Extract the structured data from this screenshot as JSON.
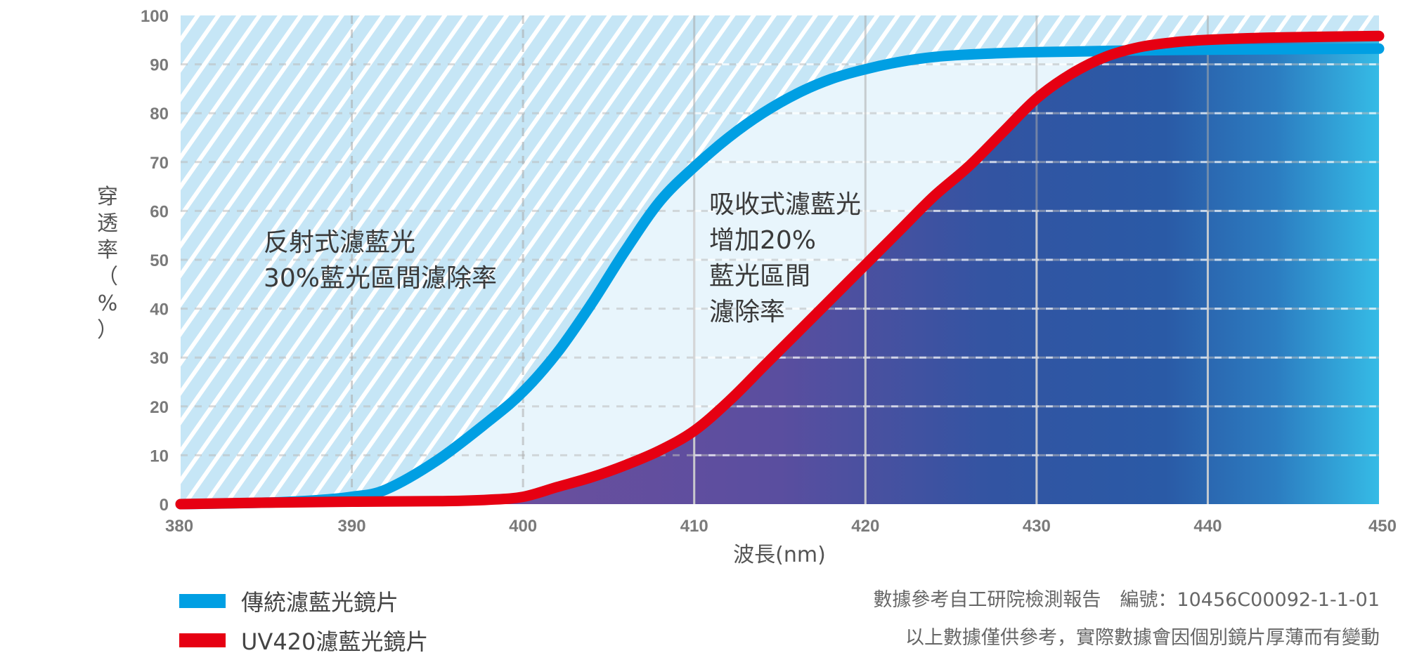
{
  "chart_data": {
    "type": "line",
    "xlabel": "波長(nm)",
    "ylabel": "穿透率（%）",
    "xlim": [
      380,
      450
    ],
    "ylim": [
      0,
      100
    ],
    "xticks": [
      "380",
      "390",
      "400",
      "410",
      "420",
      "430",
      "440",
      "450"
    ],
    "yticks": [
      "0",
      "10",
      "20",
      "30",
      "40",
      "50",
      "60",
      "70",
      "80",
      "90",
      "100"
    ],
    "grid": true,
    "series": [
      {
        "name": "傳統濾藍光鏡片",
        "color": "#009fe3",
        "x": [
          380,
          385,
          388,
          390,
          392,
          395,
          398,
          400,
          402,
          404,
          406,
          408,
          410,
          412,
          414,
          416,
          418,
          420,
          422,
          424,
          426,
          428,
          430,
          432,
          435,
          440,
          445,
          450
        ],
        "y": [
          0,
          0.3,
          0.8,
          1.5,
          3,
          9,
          17,
          23,
          31,
          41,
          52,
          62,
          69,
          75,
          80,
          84,
          87,
          89,
          90.5,
          91.5,
          92,
          92.3,
          92.5,
          92.6,
          92.8,
          93,
          93.1,
          93.2
        ]
      },
      {
        "name": "UV420濾藍光鏡片",
        "color": "#e60012",
        "x": [
          380,
          385,
          390,
          395,
          398,
          400,
          402,
          404,
          406,
          408,
          410,
          412,
          414,
          416,
          418,
          420,
          422,
          424,
          426,
          428,
          430,
          432,
          434,
          436,
          438,
          440,
          443,
          446,
          450
        ],
        "y": [
          0,
          0.3,
          0.5,
          0.6,
          0.9,
          1.5,
          3.5,
          5.5,
          8,
          11,
          15,
          21,
          28,
          35,
          42,
          49,
          56,
          63,
          69,
          76,
          83,
          88,
          91.5,
          93.5,
          94.5,
          95,
          95.4,
          95.6,
          95.8
        ]
      }
    ],
    "annotations": [
      {
        "lines": [
          "反射式濾藍光",
          "30%藍光區間濾除率"
        ]
      },
      {
        "lines": [
          "吸收式濾藍光",
          "增加20%",
          "藍光區間",
          "濾除率"
        ]
      }
    ]
  },
  "notes": [
    "數據參考自工研院檢測報告　編號：10456C00092-1-1-01",
    "以上數據僅供參考，實際數據會因個別鏡片厚薄而有變動"
  ]
}
